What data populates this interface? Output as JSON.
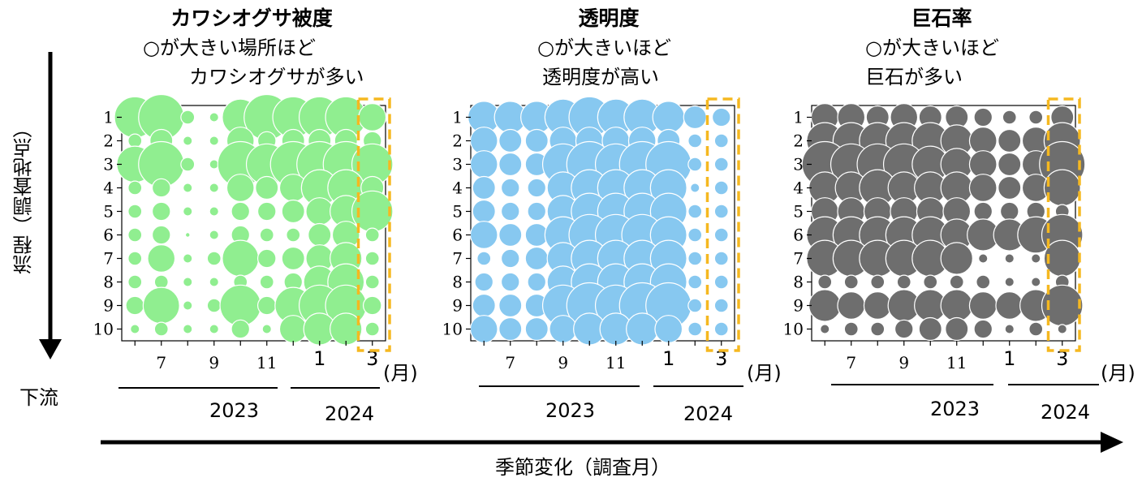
{
  "figure": {
    "y_axis_label": "流程（調査地点）",
    "downstream_label": "下流",
    "x_axis_label": "季節変化（調査月）",
    "month_unit": "(月)",
    "year_2023": "2023",
    "year_2024": "2024"
  },
  "panels": [
    {
      "title": "カワシオグサ被度",
      "note_line1": "○が大きい場所ほど",
      "note_line2": "カワシオグサが多い"
    },
    {
      "title": "透明度",
      "note_line1": "○が大きいほど",
      "note_line2": "透明度が高い"
    },
    {
      "title": "巨石率",
      "note_line1": "○が大きいほど",
      "note_line2": "巨石が多い"
    }
  ],
  "chart_data": [
    {
      "type": "scatter",
      "title": "カワシオグサ被度",
      "color": "#90ee90",
      "x_ticks": [
        "7",
        "9",
        "11",
        "1",
        "3"
      ],
      "x_unit": "(月)",
      "y_ticks": [
        "1",
        "2",
        "3",
        "4",
        "5",
        "6",
        "7",
        "8",
        "9",
        "10"
      ],
      "months": [
        "2023-06",
        "2023-07",
        "2023-08",
        "2023-09",
        "2023-10",
        "2023-11",
        "2023-12",
        "2024-01",
        "2024-02",
        "2024-03"
      ],
      "highlight": "2024-03",
      "size_matrix": [
        [
          0.9,
          1.0,
          0.3,
          0.2,
          0.8,
          1.0,
          0.9,
          0.9,
          0.9,
          0.6
        ],
        [
          0.3,
          0.5,
          0.2,
          0.2,
          0.6,
          0.4,
          0.5,
          0.5,
          0.5,
          0.4
        ],
        [
          0.8,
          1.0,
          0.3,
          0.2,
          1.0,
          0.9,
          1.0,
          1.0,
          1.0,
          0.9
        ],
        [
          0.3,
          0.4,
          0.2,
          0.2,
          0.6,
          0.5,
          0.6,
          0.8,
          0.8,
          0.5
        ],
        [
          0.3,
          0.4,
          0.2,
          0.2,
          0.4,
          0.4,
          0.5,
          0.6,
          0.7,
          0.9
        ],
        [
          0.3,
          0.4,
          0.1,
          0.2,
          0.4,
          0.3,
          0.3,
          0.5,
          0.6,
          0.3
        ],
        [
          0.3,
          0.6,
          0.2,
          0.3,
          0.8,
          0.4,
          0.5,
          0.6,
          0.7,
          0.3
        ],
        [
          0.3,
          0.3,
          0.2,
          0.2,
          0.3,
          0.3,
          0.4,
          0.7,
          0.8,
          0.3
        ],
        [
          0.4,
          0.8,
          0.2,
          0.3,
          0.9,
          0.4,
          0.8,
          0.9,
          0.9,
          0.4
        ],
        [
          0.2,
          0.3,
          0.2,
          0.2,
          0.4,
          0.2,
          0.6,
          0.7,
          0.7,
          0.3
        ]
      ]
    },
    {
      "type": "scatter",
      "title": "透明度",
      "color": "#87c8f0",
      "x_ticks": [
        "7",
        "9",
        "11",
        "1",
        "3"
      ],
      "x_unit": "(月)",
      "y_ticks": [
        "1",
        "2",
        "3",
        "4",
        "5",
        "6",
        "7",
        "8",
        "9",
        "10"
      ],
      "months": [
        "2023-06",
        "2023-07",
        "2023-08",
        "2023-09",
        "2023-10",
        "2023-11",
        "2023-12",
        "2024-01",
        "2024-02",
        "2024-03"
      ],
      "highlight": "2024-03",
      "size_matrix": [
        [
          0.7,
          0.7,
          0.7,
          0.8,
          0.9,
          0.8,
          0.8,
          0.7,
          0.5,
          0.4
        ],
        [
          0.6,
          0.5,
          0.5,
          0.6,
          0.6,
          0.6,
          0.6,
          0.5,
          0.3,
          0.3
        ],
        [
          0.6,
          0.5,
          0.5,
          0.9,
          1.0,
          0.9,
          1.0,
          1.0,
          0.3,
          0.3
        ],
        [
          0.5,
          0.4,
          0.4,
          0.7,
          0.8,
          0.8,
          0.8,
          0.8,
          0.2,
          0.3
        ],
        [
          0.5,
          0.4,
          0.4,
          0.7,
          0.8,
          0.8,
          0.8,
          0.8,
          0.3,
          0.3
        ],
        [
          0.6,
          0.5,
          0.5,
          0.8,
          0.9,
          0.9,
          0.9,
          0.8,
          0.3,
          0.3
        ],
        [
          0.3,
          0.4,
          0.5,
          0.7,
          0.8,
          0.8,
          0.8,
          0.8,
          0.3,
          0.3
        ],
        [
          0.4,
          0.4,
          0.4,
          0.7,
          0.8,
          0.8,
          0.8,
          0.8,
          0.3,
          0.3
        ],
        [
          0.5,
          0.5,
          0.5,
          0.9,
          1.0,
          0.9,
          1.0,
          1.0,
          0.3,
          0.3
        ],
        [
          0.6,
          0.5,
          0.5,
          0.6,
          0.7,
          0.7,
          0.7,
          0.6,
          0.3,
          0.3
        ]
      ]
    },
    {
      "type": "scatter",
      "title": "巨石率",
      "color": "#6e6e6e",
      "x_ticks": [
        "7",
        "9",
        "11",
        "1",
        "3"
      ],
      "x_unit": "(月)",
      "y_ticks": [
        "1",
        "2",
        "3",
        "4",
        "5",
        "6",
        "7",
        "8",
        "9",
        "10"
      ],
      "months": [
        "2023-06",
        "2023-07",
        "2023-08",
        "2023-09",
        "2023-10",
        "2023-11",
        "2023-12",
        "2024-01",
        "2024-02",
        "2024-03"
      ],
      "highlight": "2024-03",
      "size_matrix": [
        [
          0.6,
          0.6,
          0.5,
          0.6,
          0.5,
          0.5,
          0.4,
          0.3,
          0.3,
          0.5
        ],
        [
          0.8,
          0.8,
          0.8,
          0.8,
          0.8,
          0.7,
          0.6,
          0.5,
          0.6,
          0.8
        ],
        [
          1.0,
          0.9,
          0.9,
          0.9,
          0.8,
          0.7,
          0.6,
          0.5,
          0.6,
          1.0
        ],
        [
          0.7,
          0.7,
          0.8,
          0.7,
          0.7,
          0.7,
          0.6,
          0.5,
          0.6,
          0.8
        ],
        [
          0.6,
          0.6,
          0.6,
          0.6,
          0.6,
          0.6,
          0.4,
          0.4,
          0.4,
          0.3
        ],
        [
          0.8,
          0.8,
          0.8,
          0.8,
          0.8,
          0.7,
          0.7,
          0.7,
          0.8,
          0.9
        ],
        [
          0.8,
          0.8,
          0.8,
          0.8,
          0.8,
          0.7,
          0.2,
          0.2,
          0.2,
          0.8
        ],
        [
          0.3,
          0.3,
          0.3,
          0.3,
          0.3,
          0.3,
          0.3,
          0.2,
          0.2,
          0.3
        ],
        [
          0.7,
          0.6,
          0.6,
          0.7,
          0.7,
          0.7,
          0.6,
          0.6,
          0.7,
          0.9
        ],
        [
          0.2,
          0.3,
          0.3,
          0.4,
          0.5,
          0.5,
          0.4,
          0.2,
          0.3,
          0.2
        ]
      ]
    }
  ]
}
